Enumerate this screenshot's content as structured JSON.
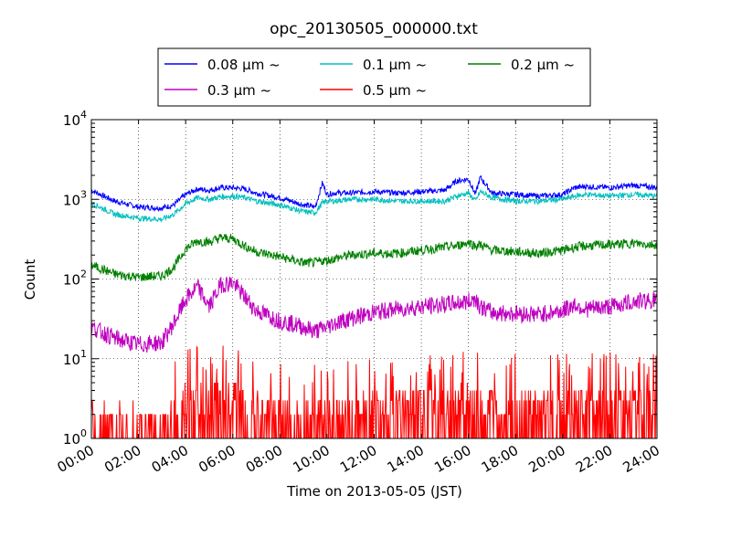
{
  "chart_data": {
    "type": "line",
    "title": "opc_20130505_000000.txt",
    "xlabel": "Time on 2013-05-05 (JST)",
    "ylabel": "Count",
    "xlim": [
      "00:00",
      "24:00"
    ],
    "ylim": [
      1,
      10000
    ],
    "yscale": "log",
    "grid": true,
    "legend_position": "top",
    "x_ticks": [
      "00:00",
      "02:00",
      "04:00",
      "06:00",
      "08:00",
      "10:00",
      "12:00",
      "14:00",
      "16:00",
      "18:00",
      "20:00",
      "22:00",
      "24:00"
    ],
    "y_ticks": [
      {
        "value": 1,
        "base": "10",
        "exp": "0"
      },
      {
        "value": 10,
        "base": "10",
        "exp": "1"
      },
      {
        "value": 100,
        "base": "10",
        "exp": "2"
      },
      {
        "value": 1000,
        "base": "10",
        "exp": "3"
      },
      {
        "value": 10000,
        "base": "10",
        "exp": "4"
      }
    ],
    "x_hours": [
      0,
      1,
      2,
      3,
      3.5,
      4,
      4.5,
      5,
      5.5,
      6,
      6.5,
      7,
      8,
      9,
      9.5,
      9.8,
      10,
      10.3,
      11,
      12,
      13,
      14,
      15,
      15.5,
      16,
      16.3,
      16.5,
      17,
      18,
      19,
      20,
      20.5,
      21,
      22,
      23,
      24
    ],
    "series": [
      {
        "name": "0.08 μm ~",
        "color": "#0000ff",
        "values": [
          1300,
          950,
          800,
          780,
          850,
          1150,
          1350,
          1300,
          1400,
          1400,
          1350,
          1200,
          1050,
          850,
          800,
          1600,
          1150,
          1200,
          1200,
          1250,
          1200,
          1250,
          1300,
          1700,
          1800,
          1150,
          1900,
          1200,
          1150,
          1100,
          1150,
          1400,
          1450,
          1400,
          1500,
          1400
        ]
      },
      {
        "name": "0.1 μm ~",
        "color": "#00bfbf",
        "values": [
          900,
          650,
          580,
          560,
          650,
          880,
          1050,
          1000,
          1080,
          1100,
          1050,
          950,
          850,
          700,
          680,
          900,
          950,
          950,
          1000,
          1000,
          950,
          950,
          950,
          1100,
          1200,
          950,
          1250,
          1050,
          950,
          950,
          1000,
          1100,
          1150,
          1100,
          1150,
          1100
        ]
      },
      {
        "name": "0.2 μm ~",
        "color": "#008000",
        "values": [
          150,
          115,
          105,
          110,
          140,
          240,
          300,
          290,
          330,
          320,
          260,
          220,
          190,
          160,
          160,
          170,
          170,
          180,
          200,
          210,
          210,
          230,
          250,
          260,
          290,
          260,
          270,
          230,
          220,
          210,
          230,
          250,
          260,
          270,
          280,
          270
        ]
      },
      {
        "name": "0.3 μm ~",
        "color": "#bf00bf",
        "values": [
          25,
          18,
          15,
          16,
          28,
          55,
          80,
          45,
          85,
          90,
          60,
          40,
          30,
          25,
          22,
          24,
          25,
          28,
          32,
          38,
          42,
          45,
          48,
          50,
          52,
          58,
          45,
          38,
          37,
          36,
          40,
          48,
          42,
          45,
          52,
          55
        ]
      },
      {
        "name": "0.5 μm ~",
        "color": "#ff0000",
        "values": [
          2,
          1.8,
          1.7,
          1.7,
          2.5,
          3.2,
          3.6,
          3,
          3.8,
          3.8,
          3,
          2.6,
          2.3,
          2.2,
          2.3,
          2.4,
          2.3,
          2.4,
          2.6,
          2.7,
          2.8,
          3,
          3,
          3.2,
          3.5,
          3,
          3,
          2.8,
          2.9,
          2.8,
          3,
          3,
          3,
          3.1,
          3.2,
          3.2
        ]
      }
    ]
  }
}
